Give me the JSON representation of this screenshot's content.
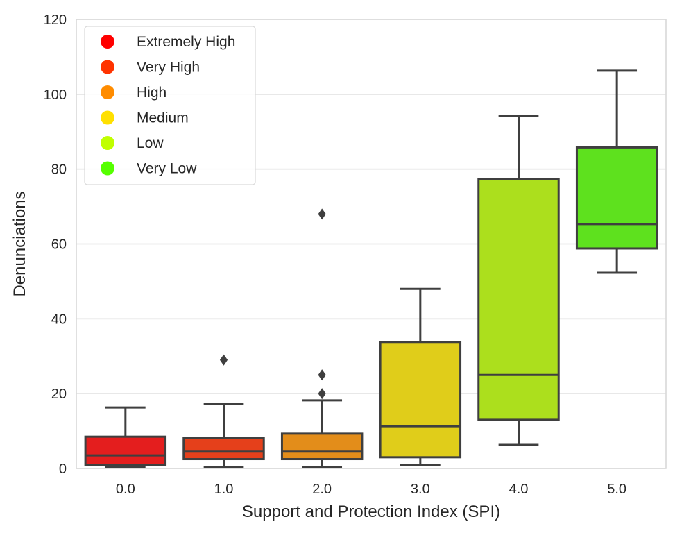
{
  "chart_data": {
    "type": "boxplot",
    "title": "",
    "xlabel": "Support and Protection Index (SPI)",
    "ylabel": "Denunciations",
    "categories": [
      "0.0",
      "1.0",
      "2.0",
      "3.0",
      "4.0",
      "5.0"
    ],
    "ylim": [
      0,
      120
    ],
    "yticks": [
      0,
      20,
      40,
      60,
      80,
      100,
      120
    ],
    "grid": "horizontal",
    "legend_position": "top-left",
    "legend": [
      {
        "label": "Extremely High",
        "color": "#ff0000"
      },
      {
        "label": "Very High",
        "color": "#ff3300"
      },
      {
        "label": "High",
        "color": "#ff8c00"
      },
      {
        "label": "Medium",
        "color": "#ffe000"
      },
      {
        "label": "Low",
        "color": "#c0ff00"
      },
      {
        "label": "Very Low",
        "color": "#55ff00"
      }
    ],
    "boxes": [
      {
        "category": "0.0",
        "whisker_low": 0.3,
        "q1": 1.0,
        "median": 3.5,
        "q3": 8.5,
        "whisker_high": 16.3,
        "outliers": [],
        "color": "#e41e1e"
      },
      {
        "category": "1.0",
        "whisker_low": 0.3,
        "q1": 2.5,
        "median": 4.5,
        "q3": 8.2,
        "whisker_high": 17.3,
        "outliers": [
          29
        ],
        "color": "#e5401b"
      },
      {
        "category": "2.0",
        "whisker_low": 0.3,
        "q1": 2.5,
        "median": 4.5,
        "q3": 9.3,
        "whisker_high": 18.2,
        "outliers": [
          20,
          25,
          68
        ],
        "color": "#e38d1a"
      },
      {
        "category": "3.0",
        "whisker_low": 1.0,
        "q1": 3.0,
        "median": 11.3,
        "q3": 33.8,
        "whisker_high": 48.0,
        "outliers": [],
        "color": "#e0cd1a"
      },
      {
        "category": "4.0",
        "whisker_low": 6.3,
        "q1": 13.0,
        "median": 25.0,
        "q3": 77.3,
        "whisker_high": 94.3,
        "outliers": [],
        "color": "#acdf1d"
      },
      {
        "category": "5.0",
        "whisker_low": 52.3,
        "q1": 58.8,
        "median": 65.3,
        "q3": 85.8,
        "whisker_high": 106.3,
        "outliers": [],
        "color": "#5ee11e"
      }
    ]
  }
}
